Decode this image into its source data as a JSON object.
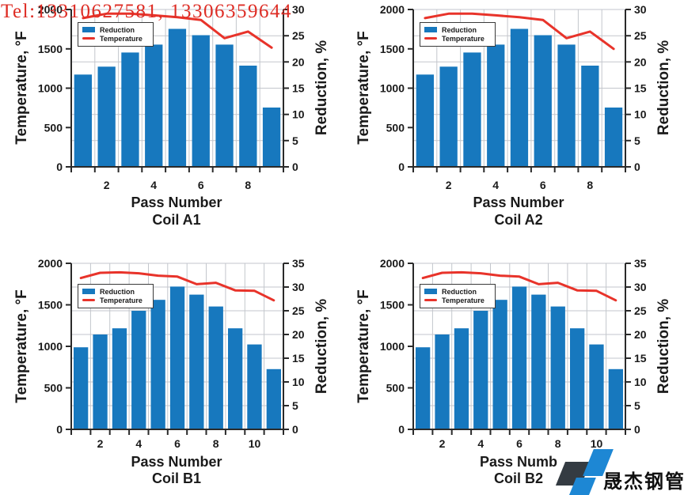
{
  "watermark": {
    "text": "Tel:13310627581, 13306359644",
    "color": "#de2c24"
  },
  "logo": {
    "text": "晟杰钢管",
    "dark_color": "#343b42",
    "blue_color": "#1d87d4"
  },
  "palette": {
    "bar": "#1778be",
    "line": "#e8332a",
    "grid": "#c3c6cc",
    "axis": "#2a2a2a",
    "text": "#1a1a1a"
  },
  "chart_data": [
    {
      "id": "coil-a1",
      "type": "bar",
      "xlabel": "Pass Number",
      "sublabel": "Coil A1",
      "left_axis": {
        "label": "Temperature, °F",
        "min": 0,
        "max": 2000,
        "ticks": [
          0,
          500,
          1000,
          1500,
          2000
        ]
      },
      "right_axis": {
        "label": "Reduction, %",
        "min": 0,
        "max": 30,
        "ticks": [
          0,
          5,
          10,
          15,
          20,
          25,
          30
        ]
      },
      "categories": [
        1,
        2,
        3,
        4,
        5,
        6,
        7,
        8,
        9
      ],
      "x_tick_labels": [
        2,
        4,
        6,
        8
      ],
      "grid": true,
      "legend_position": "upper-left",
      "series": [
        {
          "name": "Reduction",
          "kind": "bar",
          "axis": "right",
          "values": [
            17.6,
            19.1,
            21.8,
            23.3,
            26.3,
            25.1,
            23.3,
            19.3,
            11.3
          ]
        },
        {
          "name": "Temperature",
          "kind": "line",
          "axis": "left",
          "values": [
            1890,
            1947,
            1947,
            1926,
            1902,
            1867,
            1635,
            1720,
            1515
          ]
        }
      ]
    },
    {
      "id": "coil-a2",
      "type": "bar",
      "xlabel": "Pass Number",
      "sublabel": "Coil A2",
      "left_axis": {
        "label": "Temperature, °F",
        "min": 0,
        "max": 2000,
        "ticks": [
          0,
          500,
          1000,
          1500,
          2000
        ]
      },
      "right_axis": {
        "label": "Reduction, %",
        "min": 0,
        "max": 30,
        "ticks": [
          0,
          5,
          10,
          15,
          20,
          25,
          30
        ]
      },
      "categories": [
        1,
        2,
        3,
        4,
        5,
        6,
        7,
        8,
        9
      ],
      "x_tick_labels": [
        2,
        4,
        6,
        8
      ],
      "grid": true,
      "legend_position": "upper-left",
      "series": [
        {
          "name": "Reduction",
          "kind": "bar",
          "axis": "right",
          "values": [
            17.6,
            19.1,
            21.8,
            23.3,
            26.3,
            25.1,
            23.3,
            19.3,
            11.3
          ]
        },
        {
          "name": "Temperature",
          "kind": "line",
          "axis": "left",
          "values": [
            1890,
            1947,
            1947,
            1926,
            1902,
            1867,
            1635,
            1720,
            1500
          ]
        }
      ]
    },
    {
      "id": "coil-b1",
      "type": "bar",
      "xlabel": "Pass Number",
      "sublabel": "Coil B1",
      "left_axis": {
        "label": "Temperature, °F",
        "min": 0,
        "max": 2000,
        "ticks": [
          0,
          500,
          1000,
          1500,
          2000
        ]
      },
      "right_axis": {
        "label": "Reduction, %",
        "min": 0,
        "max": 35,
        "ticks": [
          0,
          5,
          10,
          15,
          20,
          25,
          30,
          35
        ]
      },
      "categories": [
        1,
        2,
        3,
        4,
        5,
        6,
        7,
        8,
        9,
        10,
        11
      ],
      "x_tick_labels": [
        2,
        4,
        6,
        8,
        10
      ],
      "grid": true,
      "legend_position": "upper-left",
      "series": [
        {
          "name": "Reduction",
          "kind": "bar",
          "axis": "right",
          "values": [
            17.3,
            20.0,
            21.3,
            25.0,
            27.3,
            30.1,
            28.4,
            25.9,
            21.3,
            17.9,
            12.7
          ]
        },
        {
          "name": "Temperature",
          "kind": "line",
          "axis": "left",
          "values": [
            1823,
            1886,
            1891,
            1880,
            1851,
            1840,
            1749,
            1766,
            1674,
            1669,
            1554
          ]
        }
      ]
    },
    {
      "id": "coil-b2",
      "type": "bar",
      "xlabel": "Pass Numb",
      "sublabel": "Coil B2",
      "left_axis": {
        "label": "Temperature, °F",
        "min": 0,
        "max": 2000,
        "ticks": [
          0,
          500,
          1000,
          1500,
          2000
        ]
      },
      "right_axis": {
        "label": "Reduction, %",
        "min": 0,
        "max": 35,
        "ticks": [
          0,
          5,
          10,
          15,
          20,
          25,
          30,
          35
        ]
      },
      "categories": [
        1,
        2,
        3,
        4,
        5,
        6,
        7,
        8,
        9,
        10,
        11
      ],
      "x_tick_labels": [
        2,
        4,
        6,
        8,
        10
      ],
      "grid": true,
      "legend_position": "upper-left",
      "series": [
        {
          "name": "Reduction",
          "kind": "bar",
          "axis": "right",
          "values": [
            17.3,
            20.0,
            21.3,
            25.0,
            27.3,
            30.1,
            28.4,
            25.9,
            21.3,
            17.9,
            12.7
          ]
        },
        {
          "name": "Temperature",
          "kind": "line",
          "axis": "left",
          "values": [
            1823,
            1886,
            1891,
            1880,
            1851,
            1840,
            1749,
            1766,
            1674,
            1669,
            1554
          ]
        }
      ]
    }
  ]
}
